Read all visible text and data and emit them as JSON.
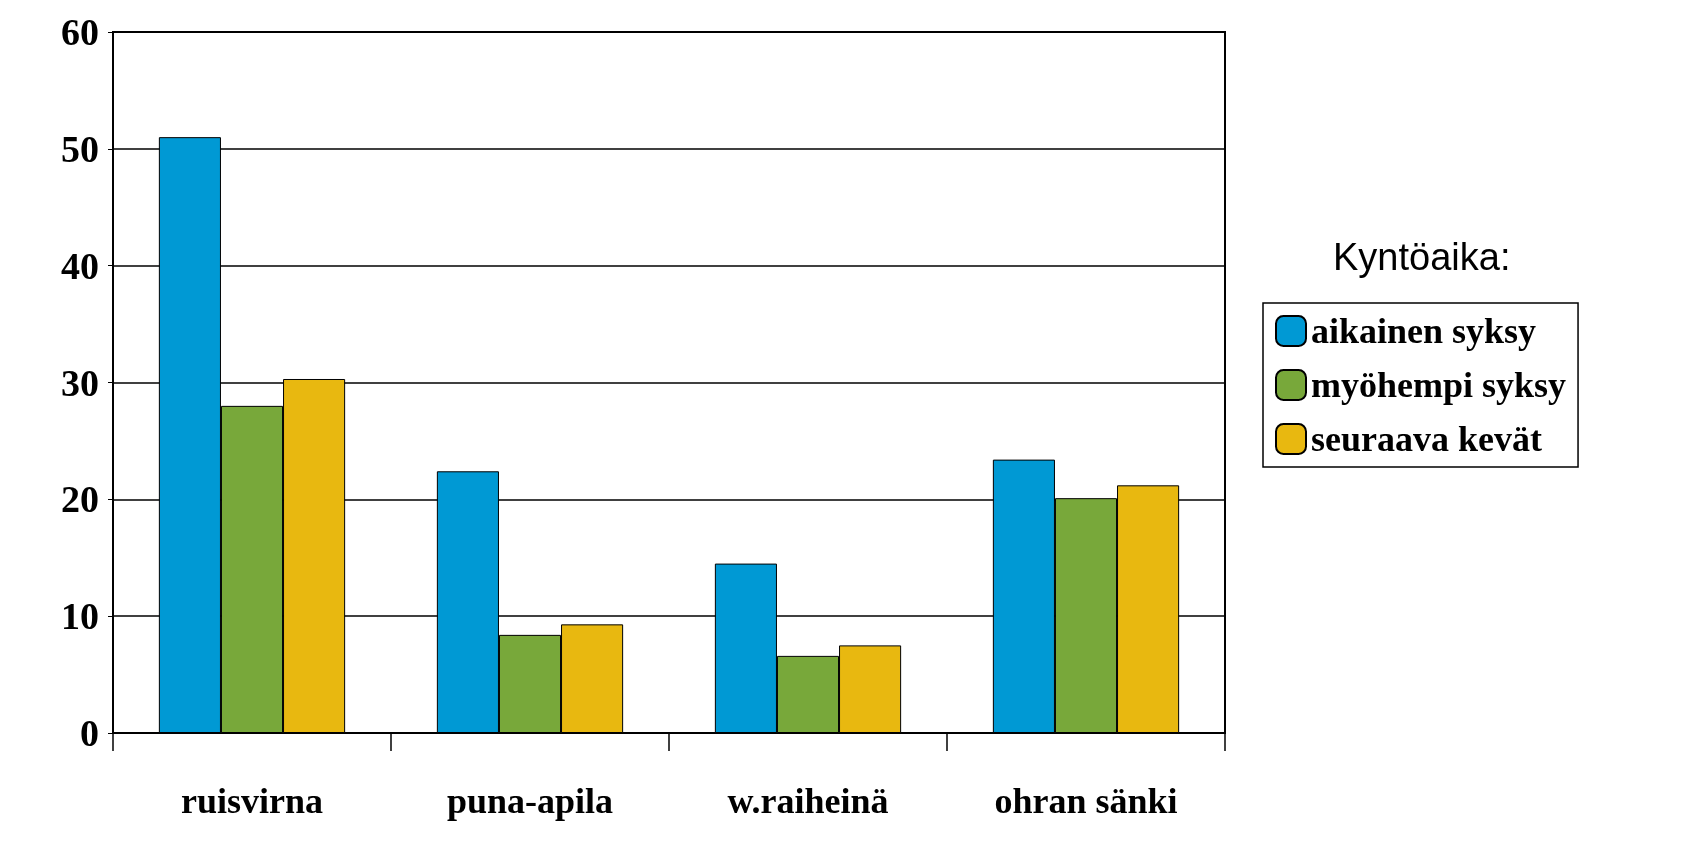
{
  "chart_data": {
    "type": "bar",
    "categories": [
      "ruisvirna",
      "puna-apila",
      "w.raiheinä",
      "ohran sänki"
    ],
    "series": [
      {
        "name": "aikainen syksy",
        "color": "#0099d4",
        "values": [
          51.0,
          22.4,
          14.5,
          23.4
        ]
      },
      {
        "name": "myöhempi syksy",
        "color": "#78a83a",
        "values": [
          28.0,
          8.4,
          6.6,
          20.1
        ]
      },
      {
        "name": "seuraava kevät",
        "color": "#e8b810",
        "values": [
          30.3,
          9.3,
          7.5,
          21.2
        ]
      }
    ],
    "legend_title": "Kyntöaika:",
    "legend": "right",
    "ylim": [
      0,
      60
    ],
    "yticks": [
      0,
      10,
      20,
      30,
      40,
      50,
      60
    ],
    "grid": "y"
  }
}
